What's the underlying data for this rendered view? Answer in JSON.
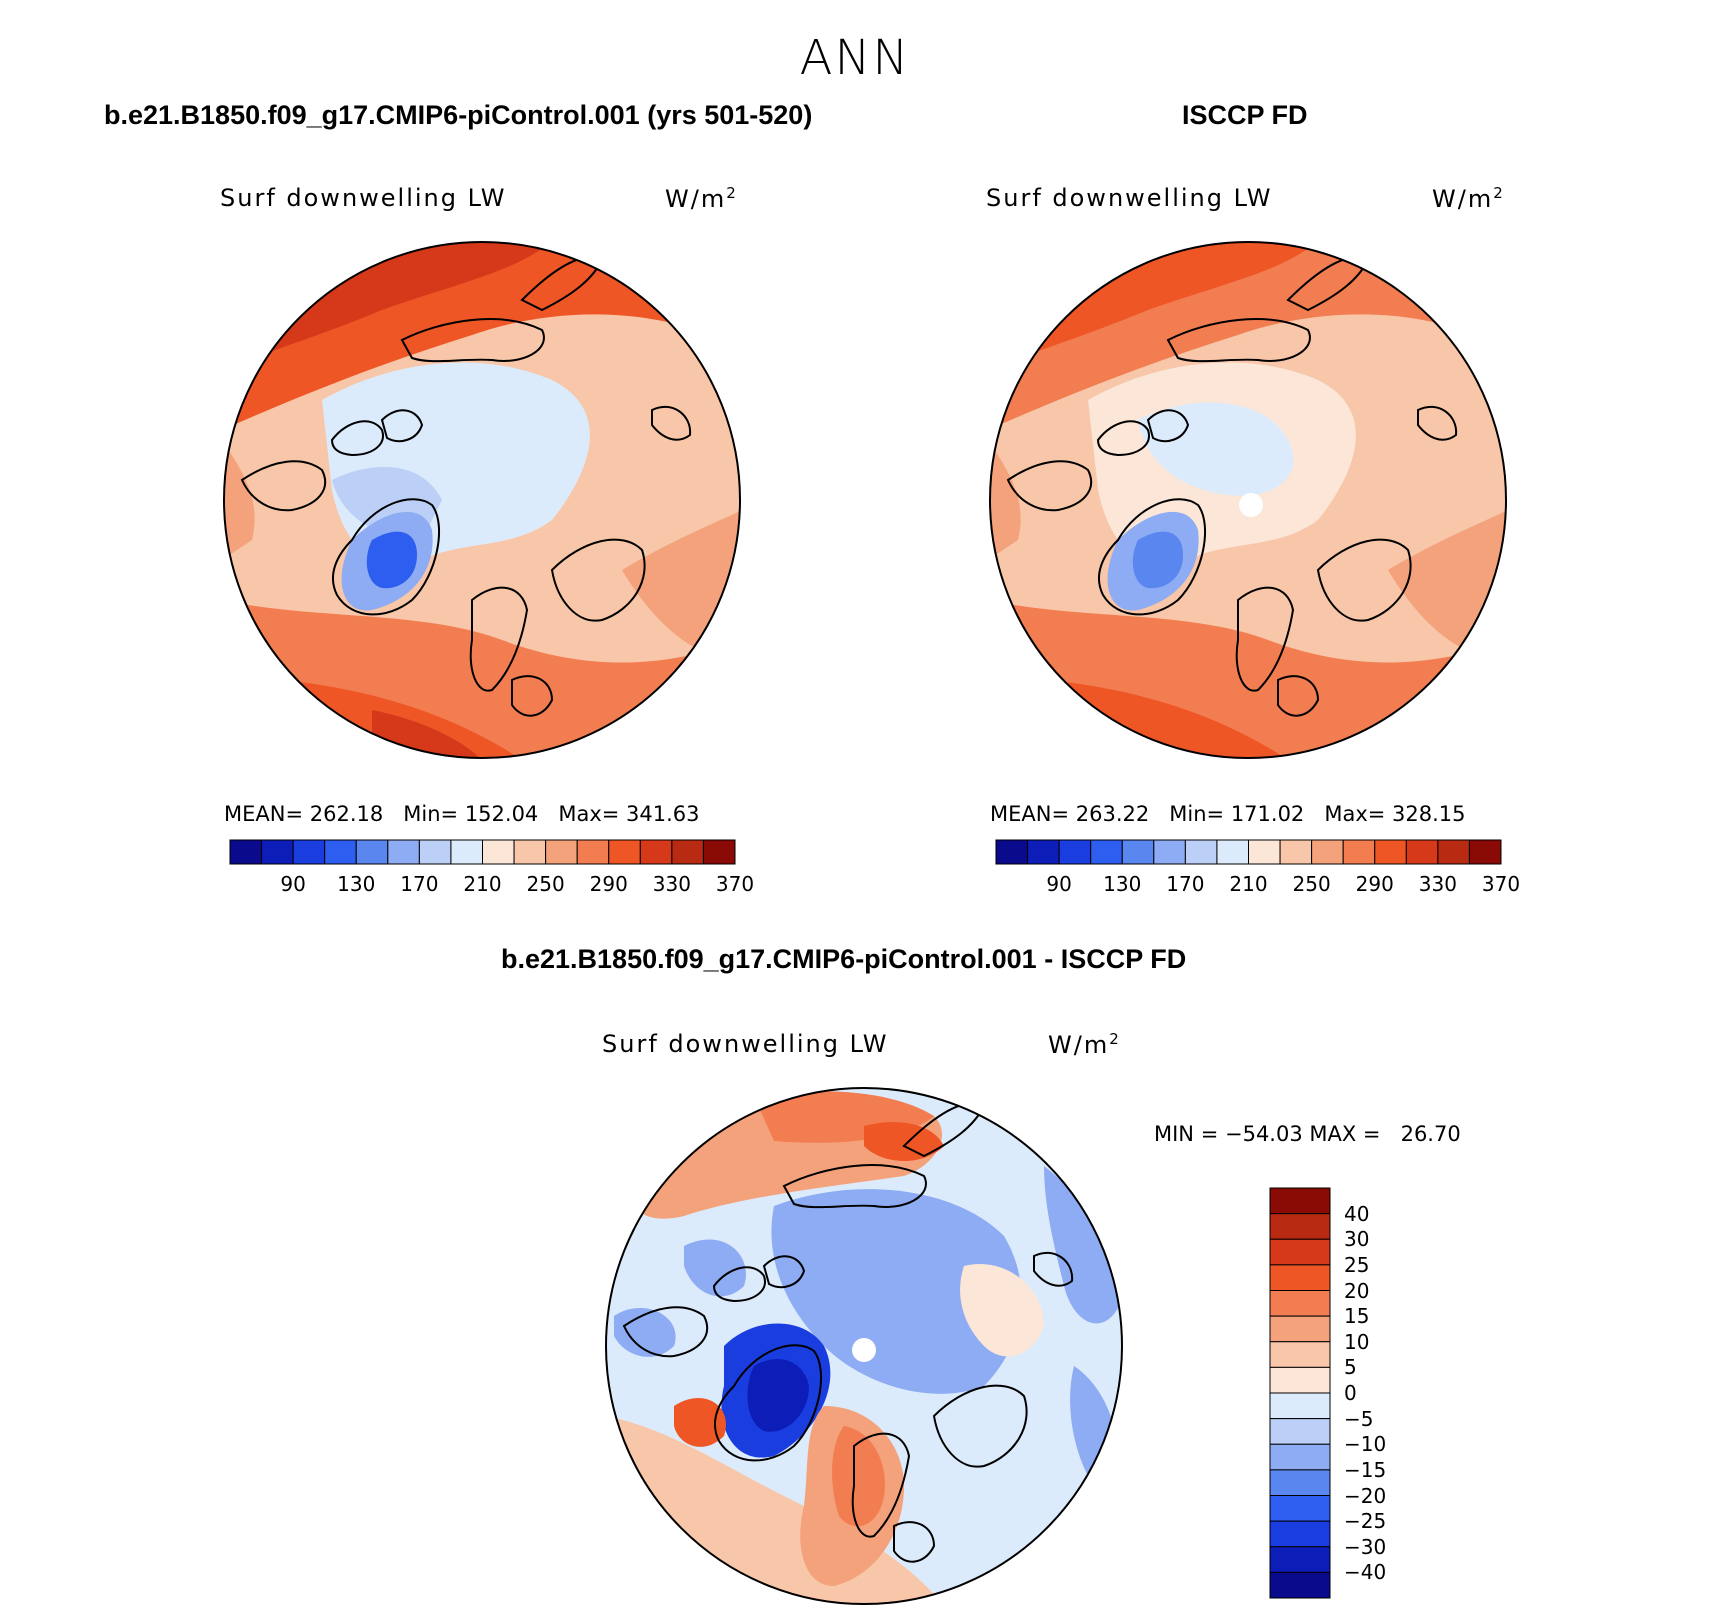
{
  "figure": {
    "season": "ANN",
    "variable_label": "Surf downwelling LW",
    "units_base": "W/m",
    "units_exp": "2"
  },
  "colors": {
    "map_palette": [
      "#0a0a8c",
      "#0d1db8",
      "#1a3de0",
      "#2e5ef0",
      "#5a86f0",
      "#8eacf3",
      "#bcd0f7",
      "#dcebfb",
      "#fbe6d8",
      "#f8c6a8",
      "#f4a27b",
      "#f27d51",
      "#ee5626",
      "#d6391a",
      "#b82a12",
      "#8a0b05"
    ],
    "diff_palette": [
      "#0a0a8c",
      "#0d1db8",
      "#1a3de0",
      "#2e5ef0",
      "#5a86f0",
      "#8eacf3",
      "#bcd0f7",
      "#dcebfb",
      "#fbe6d8",
      "#f8c6a8",
      "#f4a27b",
      "#f27d51",
      "#ee5626",
      "#d6391a",
      "#b82a12",
      "#8a0b05"
    ],
    "land_outline": "#000000"
  },
  "chart_data": [
    {
      "type": "heatmap",
      "panel": "test",
      "title": "b.e21.B1850.f09_g17.CMIP6-piControl.001 (yrs 501-520)",
      "projection": "north polar stereographic",
      "stats": {
        "mean_label": "MEAN=",
        "mean": "262.18",
        "min_label": "Min=",
        "min": "152.04",
        "max_label": "Max=",
        "max": "341.63"
      },
      "colorbar_ticks": [
        "90",
        "130",
        "170",
        "210",
        "250",
        "290",
        "330",
        "370"
      ],
      "contour_levels": [
        80,
        90,
        110,
        130,
        150,
        170,
        190,
        210,
        230,
        250,
        270,
        290,
        310,
        330,
        350,
        370
      ]
    },
    {
      "type": "heatmap",
      "panel": "observations",
      "title": "ISCCP FD",
      "projection": "north polar stereographic",
      "stats": {
        "mean_label": "MEAN=",
        "mean": "263.22",
        "min_label": "Min=",
        "min": "171.02",
        "max_label": "Max=",
        "max": "328.15"
      },
      "colorbar_ticks": [
        "90",
        "130",
        "170",
        "210",
        "250",
        "290",
        "330",
        "370"
      ],
      "contour_levels": [
        80,
        90,
        110,
        130,
        150,
        170,
        190,
        210,
        230,
        250,
        270,
        290,
        310,
        330,
        350,
        370
      ]
    },
    {
      "type": "heatmap",
      "panel": "difference",
      "title": "b.e21.B1850.f09_g17.CMIP6-piControl.001 - ISCCP FD",
      "projection": "north polar stereographic",
      "minmax": {
        "min_label": "MIN =",
        "min": "−54.03",
        "max_label": "MAX =",
        "max": "26.70"
      },
      "colorbar_ticks": [
        "40",
        "30",
        "25",
        "20",
        "15",
        "10",
        "5",
        "0",
        "−5",
        "−10",
        "−15",
        "−20",
        "−25",
        "−30",
        "−40"
      ],
      "contour_levels": [
        -40,
        -30,
        -25,
        -20,
        -15,
        -10,
        -5,
        0,
        5,
        10,
        15,
        20,
        25,
        30,
        40
      ]
    }
  ]
}
